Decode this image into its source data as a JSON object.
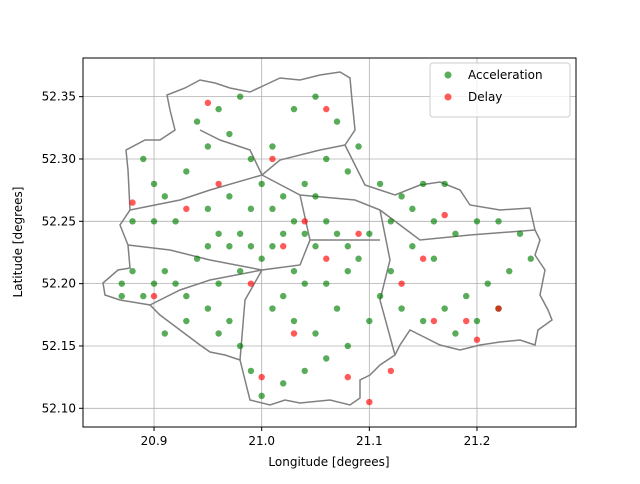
{
  "chart_data": {
    "type": "scatter",
    "xlabel": "Longitude [degrees]",
    "ylabel": "Latitude [degrees]",
    "xlim": [
      20.834,
      21.292
    ],
    "ylim": [
      52.085,
      52.381
    ],
    "xticks": [
      20.9,
      {
        "value": 21,
        "label": "21.0"
      },
      21.1,
      21.2
    ],
    "yticks": [
      {
        "value": 52.1,
        "label": "52.10"
      },
      52.15,
      {
        "value": 52.2,
        "label": "52.20"
      },
      52.25,
      {
        "value": 52.3,
        "label": "52.30"
      },
      52.35
    ],
    "grid": true,
    "legend": "upper right",
    "series": [
      {
        "name": "Acceleration",
        "color": "#008000",
        "x": [
          20.87,
          20.87,
          20.88,
          20.89,
          20.9,
          20.91,
          20.92,
          20.93,
          20.94,
          20.95,
          20.96,
          20.97,
          20.98,
          20.99,
          21.0,
          21.01,
          21.02,
          21.03,
          21.04,
          21.05,
          21.06,
          21.07,
          21.08,
          21.09,
          21.1,
          21.12,
          21.14,
          21.16,
          21.18,
          21.2,
          21.22,
          21.24,
          21.25,
          21.23,
          21.21,
          21.19,
          21.17,
          21.15,
          21.13,
          21.11,
          21.1,
          21.08,
          21.06,
          21.04,
          21.02,
          21.0,
          20.99,
          20.98,
          20.97,
          20.96,
          20.95,
          20.93,
          20.91,
          20.92,
          20.91,
          20.9,
          20.89,
          20.93,
          20.95,
          20.94,
          20.96,
          20.98,
          20.97,
          20.99,
          21.0,
          21.01,
          21.03,
          21.05,
          21.07,
          21.06,
          21.08,
          21.09,
          21.04,
          21.02,
          21.01,
          20.99,
          20.97,
          20.95,
          20.88,
          20.9,
          21.03,
          21.04,
          21.02,
          21.01,
          21.03,
          21.05,
          21.07,
          21.06,
          21.08,
          21.12,
          21.14,
          21.16,
          21.17,
          21.15,
          21.13,
          21.11,
          21.05,
          20.98,
          20.96,
          21.18,
          21.2,
          21.22
        ],
        "y": [
          52.2,
          52.19,
          52.21,
          52.19,
          52.2,
          52.21,
          52.2,
          52.19,
          52.22,
          52.23,
          52.24,
          52.23,
          52.24,
          52.23,
          52.22,
          52.23,
          52.24,
          52.25,
          52.24,
          52.23,
          52.25,
          52.24,
          52.23,
          52.22,
          52.24,
          52.25,
          52.26,
          52.25,
          52.24,
          52.25,
          52.25,
          52.24,
          52.22,
          52.21,
          52.2,
          52.19,
          52.18,
          52.17,
          52.18,
          52.19,
          52.17,
          52.15,
          52.14,
          52.13,
          52.12,
          52.11,
          52.13,
          52.15,
          52.17,
          52.16,
          52.18,
          52.17,
          52.16,
          52.25,
          52.27,
          52.28,
          52.3,
          52.29,
          52.31,
          52.33,
          52.34,
          52.35,
          52.32,
          52.3,
          52.28,
          52.31,
          52.34,
          52.35,
          52.33,
          52.3,
          52.29,
          52.31,
          52.28,
          52.27,
          52.26,
          52.26,
          52.27,
          52.26,
          52.25,
          52.25,
          52.21,
          52.2,
          52.19,
          52.18,
          52.17,
          52.16,
          52.18,
          52.2,
          52.21,
          52.21,
          52.23,
          52.22,
          52.28,
          52.28,
          52.27,
          52.28,
          52.27,
          52.21,
          52.2,
          52.16,
          52.17,
          52.18
        ]
      },
      {
        "name": "Delay",
        "color": "#ff0000",
        "x": [
          20.88,
          20.93,
          21.02,
          21.04,
          21.06,
          21.09,
          21.15,
          21.17,
          21.19,
          21.2,
          21.22,
          21.12,
          21.1,
          21.08,
          21.03,
          21.0,
          20.96,
          20.95,
          21.06,
          20.99,
          20.9,
          21.01,
          21.13,
          21.16
        ],
        "y": [
          52.265,
          52.26,
          52.23,
          52.25,
          52.22,
          52.24,
          52.22,
          52.255,
          52.17,
          52.155,
          52.18,
          52.13,
          52.105,
          52.125,
          52.16,
          52.125,
          52.28,
          52.345,
          52.34,
          52.2,
          52.19,
          52.3,
          52.2,
          52.17
        ]
      }
    ]
  }
}
